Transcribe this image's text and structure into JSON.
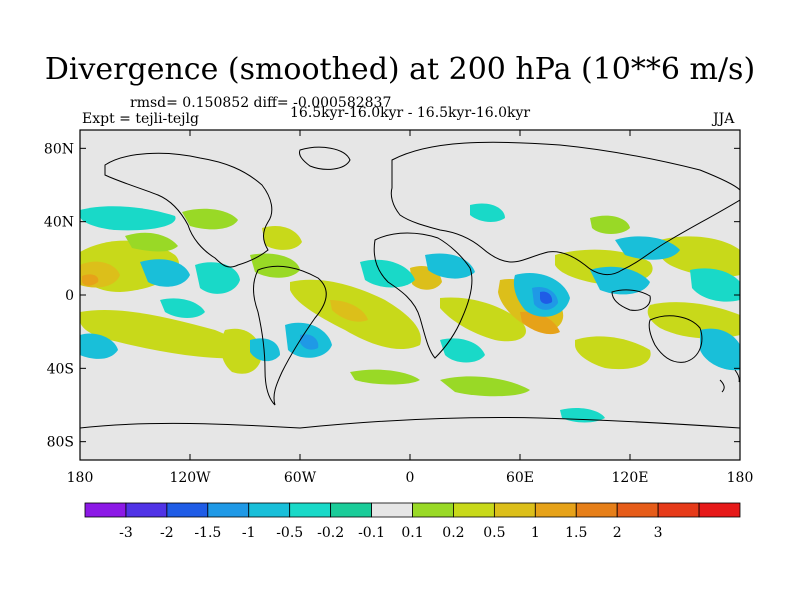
{
  "title": "Divergence (smoothed) at 200 hPa (10**6 m/s)",
  "stats": "rmsd= 0.150852 diff= -0.000582837",
  "experiment": "Expt = tejli-tejlg",
  "period": "16.5kyr-16.0kyr - 16.5kyr-16.0kyr",
  "season": "JJA",
  "axes": {
    "lat_labels": [
      "80N",
      "40N",
      "0",
      "40S",
      "80S"
    ],
    "lat_values": [
      80,
      40,
      0,
      -40,
      -80
    ],
    "lon_labels": [
      "180",
      "120W",
      "60W",
      "0",
      "60E",
      "120E",
      "180"
    ],
    "lon_values": [
      -180,
      -120,
      -60,
      0,
      60,
      120,
      180
    ]
  },
  "colorbar": {
    "colors": [
      "#8c19e6",
      "#5033e6",
      "#1f5ce6",
      "#1f99e6",
      "#19bfd9",
      "#19d9c8",
      "#1acc99",
      "#e6e6e6",
      "#99d926",
      "#c8d91a",
      "#dcbf1a",
      "#e6a219",
      "#e67f19",
      "#e65c19",
      "#e63a19",
      "#e61919"
    ],
    "labels": [
      "-3",
      "-2",
      "-1.5",
      "-1",
      "-0.5",
      "-0.2",
      "-0.1",
      "0.1",
      "0.2",
      "0.5",
      "1",
      "1.5",
      "2",
      "3"
    ]
  }
}
